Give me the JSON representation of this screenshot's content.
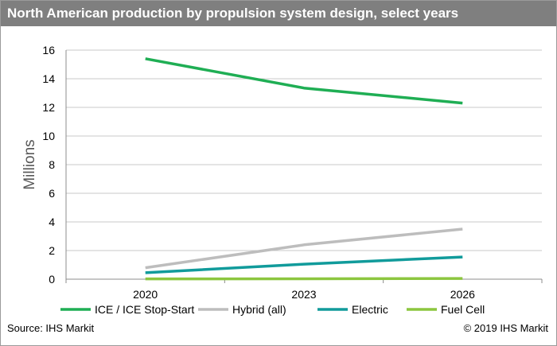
{
  "header": {
    "title": "North American production by propulsion system design, select years"
  },
  "footer": {
    "source": "Source: IHS Markit",
    "copyright": "© 2019 IHS Markit"
  },
  "chart_data": {
    "type": "line",
    "title": "North American production by propulsion system design, select years",
    "xlabel": "",
    "ylabel": "Millions",
    "categories": [
      "2020",
      "2023",
      "2026"
    ],
    "ylim": [
      0,
      16
    ],
    "yticks": [
      0,
      2,
      4,
      6,
      8,
      10,
      12,
      14,
      16
    ],
    "grid": true,
    "legend_position": "bottom",
    "series": [
      {
        "name": "ICE / ICE Stop-Start",
        "color": "#1fae54",
        "values": [
          15.4,
          13.35,
          12.3
        ]
      },
      {
        "name": "Hybrid (all)",
        "color": "#bdbdbd",
        "values": [
          0.8,
          2.4,
          3.5
        ]
      },
      {
        "name": "Electric",
        "color": "#119b9b",
        "values": [
          0.45,
          1.05,
          1.55
        ]
      },
      {
        "name": "Fuel Cell",
        "color": "#8cc63f",
        "values": [
          0.02,
          0.03,
          0.05
        ]
      }
    ]
  }
}
